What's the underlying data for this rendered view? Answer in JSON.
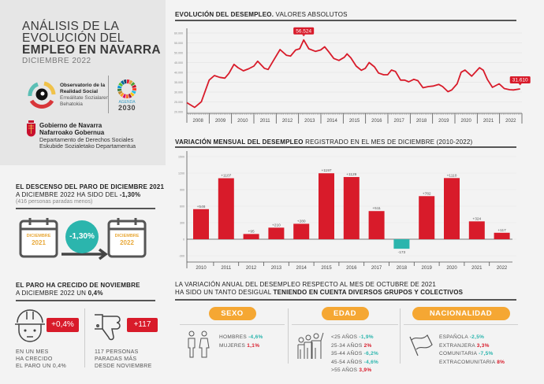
{
  "header": {
    "title_line1": "ANÁLISIS DE LA",
    "title_line2": "EVOLUCIÓN DEL",
    "title_line3": "EMPLEO EN NAVARRA",
    "date": "DICIEMBRE 2022"
  },
  "logos": {
    "observatorio": [
      "Observatorio de la",
      "Realidad Social",
      "Erreálitate Sozialaren",
      "Behatokia"
    ],
    "agenda": [
      "AGENDA",
      "2030"
    ],
    "gobierno": [
      "Gobierno de Navarra",
      "Nafarroako Gobernua",
      "Departamento de Derechos Sociales",
      "Eskubide Sozialetako Departamentua"
    ]
  },
  "descenso": {
    "heading1": "EL DESCENSO DEL PARO DE DICIEMBRE 2021",
    "heading2_pre": "A DICIEMBRE 2022 HA SIDO DEL ",
    "heading2_bold": "-1,30%",
    "sub": "(416 personas paradas menos)",
    "from_month": "DICIEMBRE",
    "from_year": "2021",
    "to_month": "DICIEMBRE",
    "to_year": "2022",
    "change": "-1,30%"
  },
  "crecido": {
    "heading1": "EL PARO HA CRECIDO DE NOVIEMBRE",
    "heading2_pre": "A DICIEMBRE 2022 UN ",
    "heading2_bold": "0,4%",
    "badge1": "+0,4%",
    "caption1": [
      "EN UN MES",
      "HA CRECIDO",
      "EL PARO UN 0,4%"
    ],
    "badge2": "+117",
    "caption2": [
      "117 PERSONAS",
      "PARADAS MÁS",
      "DESDE NOVIEMBRE"
    ]
  },
  "variacion": {
    "heading1": "LA VARIACIÓN ANUAL DEL DESEMPLEO RESPECTO AL MES DE OCTUBRE DE 2021",
    "heading2_pre": "HA SIDO UN TANTO DESIGUAL ",
    "heading2_bold": "TENIENDO EN CUENTA DIVERSOS GRUPOS Y COLECTIVOS",
    "groups": [
      {
        "title": "SEXO",
        "icon": "people-icon",
        "items": [
          {
            "label": "HOMBRES",
            "value": "-4,6%"
          },
          {
            "label": "MUJERES",
            "value": "1,1%"
          }
        ]
      },
      {
        "title": "EDAD",
        "icon": "group-raised-hand-icon",
        "items": [
          {
            "label": "<25 AÑOS",
            "value": "-1,9%"
          },
          {
            "label": "25-34 AÑOS",
            "value": "2%"
          },
          {
            "label": "35-44 AÑOS",
            "value": "-6,2%"
          },
          {
            "label": "45-54 AÑOS",
            "value": "-4,6%"
          },
          {
            "label": ">55 AÑOS",
            "value": "3,9%"
          }
        ]
      },
      {
        "title": "NACIONALIDAD",
        "icon": "flag-icon",
        "items": [
          {
            "label": "ESPAÑOLA",
            "value": "-2,5%"
          },
          {
            "label": "EXTRANJERA",
            "value": "3,3%"
          },
          {
            "label": "COMUNITARIA",
            "value": "-7,5%"
          },
          {
            "label": "EXTRACOMUNITARIA",
            "value": "8%"
          }
        ]
      }
    ]
  },
  "colors": {
    "red": "#d81b2a",
    "teal": "#2bb5ad",
    "orange": "#f5a733",
    "calendar_text": "#e8a93a",
    "negative": "#2bb5ad",
    "positive": "#d81b2a"
  },
  "chart_data": [
    {
      "type": "line",
      "title_bold": "EVOLUCIÓN DEL DESEMPLEO.",
      "title_rest": " VALORES ABSOLUTOS",
      "ylim": [
        20000,
        60000
      ],
      "yticks": [
        60000,
        55000,
        50000,
        45000,
        40000,
        35000,
        30000,
        25000,
        20000
      ],
      "ytick_labels": [
        "60.000",
        "55.000",
        "50.000",
        "45.000",
        "40.000",
        "35.000",
        "30.000",
        "25.000",
        "20.000"
      ],
      "xlim": [
        2008,
        2023
      ],
      "xtick_labels": [
        "2008",
        "2009",
        "2010",
        "2011",
        "2012",
        "2013",
        "2014",
        "2015",
        "2016",
        "2017",
        "2018",
        "2019",
        "2020",
        "2021",
        "2022"
      ],
      "grid": true,
      "points": [
        [
          2008.0,
          24600
        ],
        [
          2008.35,
          22200
        ],
        [
          2008.65,
          25100
        ],
        [
          2009.0,
          36100
        ],
        [
          2009.23,
          38400
        ],
        [
          2009.47,
          37500
        ],
        [
          2009.7,
          37100
        ],
        [
          2009.88,
          39500
        ],
        [
          2010.11,
          44100
        ],
        [
          2010.29,
          42400
        ],
        [
          2010.53,
          40800
        ],
        [
          2010.76,
          41800
        ],
        [
          2011.0,
          43200
        ],
        [
          2011.17,
          45700
        ],
        [
          2011.47,
          42100
        ],
        [
          2011.64,
          41500
        ],
        [
          2011.88,
          46100
        ],
        [
          2012.17,
          51600
        ],
        [
          2012.46,
          48700
        ],
        [
          2012.64,
          48300
        ],
        [
          2012.87,
          51400
        ],
        [
          2013.05,
          52000
        ],
        [
          2013.23,
          56524
        ],
        [
          2013.46,
          52000
        ],
        [
          2013.76,
          50700
        ],
        [
          2013.99,
          51400
        ],
        [
          2014.17,
          53000
        ],
        [
          2014.34,
          50700
        ],
        [
          2014.58,
          47100
        ],
        [
          2014.81,
          46100
        ],
        [
          2015.05,
          47700
        ],
        [
          2015.17,
          49400
        ],
        [
          2015.34,
          47400
        ],
        [
          2015.58,
          43200
        ],
        [
          2015.81,
          41100
        ],
        [
          2015.99,
          42100
        ],
        [
          2016.16,
          45000
        ],
        [
          2016.4,
          42800
        ],
        [
          2016.58,
          39700
        ],
        [
          2016.81,
          38800
        ],
        [
          2016.99,
          38800
        ],
        [
          2017.16,
          41200
        ],
        [
          2017.34,
          40500
        ],
        [
          2017.57,
          36100
        ],
        [
          2017.75,
          36100
        ],
        [
          2017.93,
          35200
        ],
        [
          2018.16,
          36500
        ],
        [
          2018.34,
          35800
        ],
        [
          2018.57,
          32200
        ],
        [
          2018.81,
          32800
        ],
        [
          2019.04,
          33100
        ],
        [
          2019.28,
          33900
        ],
        [
          2019.45,
          32800
        ],
        [
          2019.69,
          30200
        ],
        [
          2019.86,
          31100
        ],
        [
          2020.1,
          34200
        ],
        [
          2020.28,
          40100
        ],
        [
          2020.45,
          41200
        ],
        [
          2020.75,
          38100
        ],
        [
          2021.1,
          42400
        ],
        [
          2021.27,
          41100
        ],
        [
          2021.45,
          36500
        ],
        [
          2021.68,
          32400
        ],
        [
          2021.98,
          34200
        ],
        [
          2022.21,
          31800
        ],
        [
          2022.45,
          31200
        ],
        [
          2022.62,
          31100
        ],
        [
          2022.92,
          31610
        ]
      ],
      "annotations": [
        {
          "x": 2013.23,
          "y": 56524,
          "label": "56.524"
        },
        {
          "x": 2022.92,
          "y": 31610,
          "label": "31.610"
        }
      ],
      "color": "#d81b2a"
    },
    {
      "type": "bar",
      "title_bold": "VARIACIÓN MENSUAL DEL DESEMPLEO",
      "title_rest": " REGISTRADO EN EL MES DE DICIEMBRE (2010-2022)",
      "categories": [
        "2010",
        "2011",
        "2012",
        "2013",
        "2014",
        "2015",
        "2016",
        "2017",
        "2018",
        "2019",
        "2020",
        "2021",
        "2022"
      ],
      "values": [
        546,
        1107,
        95,
        210,
        280,
        1197,
        1129,
        511,
        -173,
        782,
        1110,
        324,
        117
      ],
      "data_labels": [
        "+546",
        "+1107",
        "+95",
        "+210",
        "+280",
        "+1197",
        "+1129",
        "+511",
        "-173",
        "+782",
        "+1110",
        "+324",
        "+117"
      ],
      "ylim": [
        -400,
        1500
      ],
      "yticks": [
        1500,
        1200,
        900,
        600,
        300,
        0,
        -300
      ],
      "ytick_labels": [
        "1500",
        "1200",
        "900",
        "600",
        "300",
        "0",
        "-300"
      ],
      "grid": true,
      "positive_color": "#d81b2a",
      "negative_color": "#2bb5ad"
    }
  ]
}
